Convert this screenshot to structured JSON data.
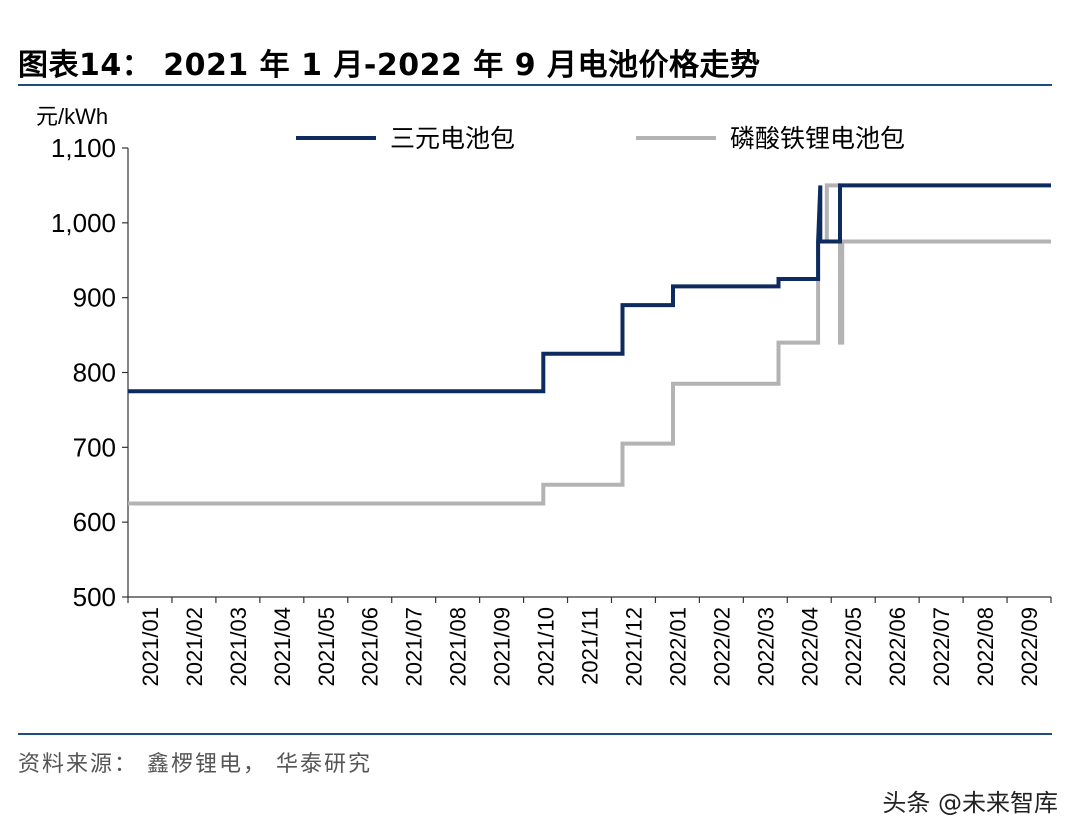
{
  "title": "图表14： 2021 年 1 月-2022 年 9 月电池价格走势",
  "source": "资料来源： 鑫椤锂电， 华泰研究",
  "watermark": "头条 @未来智库",
  "chart_data": {
    "type": "line",
    "title": "2021 年 1 月-2022 年 9 月电池价格走势",
    "ylabel": "元/kWh",
    "xlabel": "",
    "ylim": [
      500,
      1100
    ],
    "xlim": [
      0,
      21
    ],
    "yticks": [
      500,
      600,
      700,
      800,
      900,
      1000,
      1100
    ],
    "ytick_labels": [
      "500",
      "600",
      "700",
      "800",
      "900",
      "1,000",
      "1,100"
    ],
    "categories": [
      "2021/01",
      "2021/02",
      "2021/03",
      "2021/04",
      "2021/05",
      "2021/06",
      "2021/07",
      "2021/08",
      "2021/09",
      "2021/10",
      "2021/11",
      "2021/12",
      "2022/01",
      "2022/02",
      "2022/03",
      "2022/04",
      "2022/05",
      "2022/06",
      "2022/07",
      "2022/08",
      "2022/09"
    ],
    "legend_position": "top",
    "series": [
      {
        "name": "三元电池包",
        "color": "#0d2b5e",
        "x": [
          0,
          9.45,
          9.45,
          11.25,
          11.25,
          12.4,
          12.4,
          14.8,
          14.8,
          15.7,
          15.7,
          15.75,
          15.75,
          16.2,
          16.2,
          21
        ],
        "y": [
          775,
          775,
          825,
          825,
          890,
          890,
          915,
          915,
          925,
          925,
          975,
          1050,
          975,
          975,
          1050,
          1050
        ]
      },
      {
        "name": "磷酸铁锂电池包",
        "color": "#b3b3b3",
        "x": [
          0,
          9.45,
          9.45,
          11.25,
          11.25,
          12.4,
          12.4,
          14.8,
          14.8,
          15.7,
          15.7,
          15.9,
          15.9,
          16.2,
          16.2,
          16.25,
          16.25,
          21
        ],
        "y": [
          625,
          625,
          650,
          650,
          705,
          705,
          785,
          785,
          840,
          840,
          975,
          975,
          1050,
          1050,
          840,
          840,
          975,
          975
        ]
      }
    ]
  }
}
